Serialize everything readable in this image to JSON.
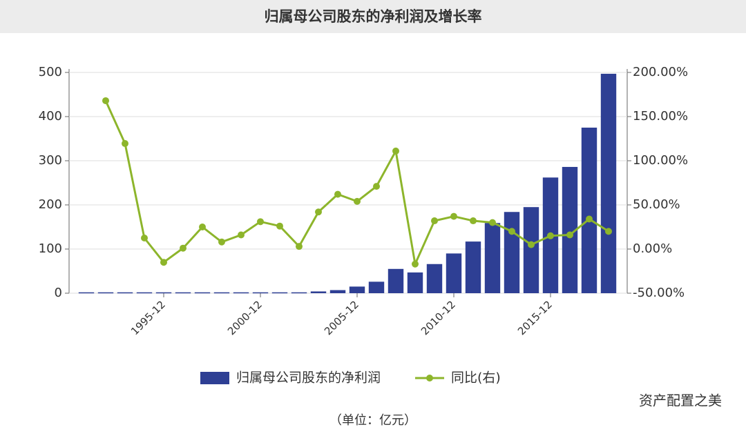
{
  "chart_data": {
    "type": "bar_line",
    "title": "归属母公司股东的净利润及增长率",
    "unit_note": "（单位：亿元）",
    "watermark": "资产配置之美",
    "categories": [
      null,
      null,
      null,
      null,
      "1995-12",
      null,
      null,
      null,
      null,
      "2000-12",
      null,
      null,
      null,
      null,
      "2005-12",
      null,
      null,
      null,
      null,
      "2010-12",
      null,
      null,
      null,
      null,
      "2015-12",
      null,
      null,
      null
    ],
    "series": [
      {
        "name": "归属母公司股东的净利润",
        "color": "#2e3f94",
        "type": "bar",
        "values": [
          2,
          2,
          2,
          2,
          2,
          2,
          2,
          2,
          2,
          2,
          2,
          2,
          4,
          7,
          15,
          26,
          55,
          47,
          66,
          90,
          117,
          159,
          184,
          195,
          262,
          286,
          375,
          497
        ]
      },
      {
        "name": "同比(右)",
        "color": "#8db52b",
        "type": "line",
        "axis": "y2",
        "values": [
          null,
          168,
          119.5,
          12.5,
          -15,
          1,
          25,
          8,
          16,
          31,
          26,
          3,
          42,
          62,
          54,
          71,
          111,
          -17,
          32,
          37,
          32,
          30,
          20,
          5,
          15,
          16,
          34,
          20
        ]
      }
    ],
    "ylim": [
      0,
      500
    ],
    "yticks": [
      0,
      100,
      200,
      300,
      400,
      500
    ],
    "y2lim": [
      -50,
      200
    ],
    "y2ticks": [
      {
        "value": -50,
        "label": "-50.00%"
      },
      {
        "value": 0,
        "label": "0.00%"
      },
      {
        "value": 50,
        "label": "50.00%"
      },
      {
        "value": 100,
        "label": "100.00%"
      },
      {
        "value": 150,
        "label": "150.00%"
      },
      {
        "value": 200,
        "label": "200.00%"
      }
    ],
    "grid": true
  }
}
